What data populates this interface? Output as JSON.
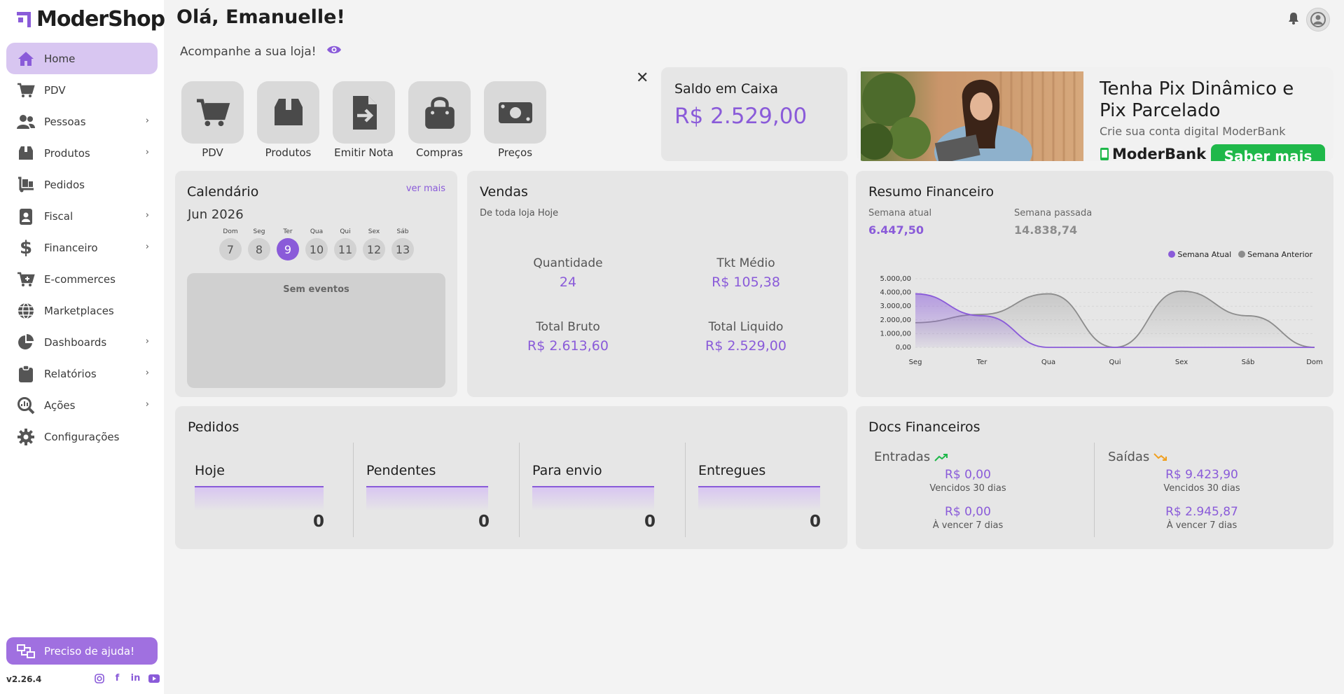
{
  "app": {
    "logo_text": "ModerShop",
    "version": "v2.26.4"
  },
  "sidebar": {
    "items": [
      {
        "label": "Home",
        "icon": "home-icon",
        "chevron": false
      },
      {
        "label": "PDV",
        "icon": "cart-icon",
        "chevron": false
      },
      {
        "label": "Pessoas",
        "icon": "people-icon",
        "chevron": true
      },
      {
        "label": "Produtos",
        "icon": "box-icon",
        "chevron": true
      },
      {
        "label": "Pedidos",
        "icon": "dolly-icon",
        "chevron": false
      },
      {
        "label": "Fiscal",
        "icon": "id-card-icon",
        "chevron": true
      },
      {
        "label": "Financeiro",
        "icon": "dollar-icon",
        "chevron": true
      },
      {
        "label": "E-commerces",
        "icon": "cart-plus-icon",
        "chevron": false
      },
      {
        "label": "Marketplaces",
        "icon": "globe-icon",
        "chevron": false
      },
      {
        "label": "Dashboards",
        "icon": "pie-chart-icon",
        "chevron": true
      },
      {
        "label": "Relatórios",
        "icon": "clipboard-icon",
        "chevron": true
      },
      {
        "label": "Ações",
        "icon": "search-chart-icon",
        "chevron": true
      },
      {
        "label": "Configurações",
        "icon": "gear-icon",
        "chevron": false
      }
    ],
    "help_label": "Preciso de ajuda!"
  },
  "header": {
    "greeting": "Olá, Emanuelle!",
    "subtitle": "Acompanhe a sua loja!"
  },
  "quick_actions": [
    {
      "label": "PDV",
      "icon": "cart-icon"
    },
    {
      "label": "Produtos",
      "icon": "box-icon"
    },
    {
      "label": "Emitir Nota",
      "icon": "file-import-icon"
    },
    {
      "label": "Compras",
      "icon": "shopping-bag-icon"
    },
    {
      "label": "Preços",
      "icon": "money-bill-icon"
    }
  ],
  "saldo": {
    "title": "Saldo em Caixa",
    "value": "R$ 2.529,00"
  },
  "banner": {
    "headline": "Tenha Pix Dinâmico e Pix Parcelado",
    "subtitle": "Crie sua conta digital ModerBank",
    "brand": "ModerBank",
    "cta": "Saber mais"
  },
  "calendar": {
    "title": "Calendário",
    "more": "ver mais",
    "month": "Jun 2026",
    "days": [
      {
        "dow": "Dom",
        "num": "7"
      },
      {
        "dow": "Seg",
        "num": "8"
      },
      {
        "dow": "Ter",
        "num": "9"
      },
      {
        "dow": "Qua",
        "num": "10"
      },
      {
        "dow": "Qui",
        "num": "11"
      },
      {
        "dow": "Sex",
        "num": "12"
      },
      {
        "dow": "Sáb",
        "num": "13"
      }
    ],
    "selected_index": 2,
    "empty": "Sem eventos"
  },
  "vendas": {
    "title": "Vendas",
    "subtitle": "De toda loja Hoje",
    "quantidade_label": "Quantidade",
    "quantidade": "24",
    "tkt_label": "Tkt Médio",
    "tkt": "R$ 105,38",
    "bruto_label": "Total Bruto",
    "bruto": "R$ 2.613,60",
    "liquido_label": "Total Liquido",
    "liquido": "R$ 2.529,00"
  },
  "resumo": {
    "title": "Resumo Financeiro",
    "atual_label": "Semana atual",
    "atual": "6.447,50",
    "passada_label": "Semana passada",
    "passada": "14.838,74"
  },
  "chart_data": {
    "type": "area",
    "categories": [
      "Seg",
      "Ter",
      "Qua",
      "Qui",
      "Sex",
      "Sáb",
      "Dom"
    ],
    "series": [
      {
        "name": "Semana Atual",
        "color": "#8a5bd9",
        "values": [
          3900,
          2300,
          0,
          0,
          0,
          0,
          0
        ]
      },
      {
        "name": "Semana Anterior",
        "color": "#8c8c8c",
        "values": [
          1800,
          2400,
          3900,
          0,
          4100,
          2300,
          0
        ]
      }
    ],
    "y_ticks": [
      "0,00",
      "1.000,00",
      "2.000,00",
      "3.000,00",
      "4.000,00",
      "5.000,00"
    ],
    "ylim": [
      0,
      5000
    ],
    "legend_position": "top-right"
  },
  "pedidos": {
    "title": "Pedidos",
    "cols": [
      {
        "label": "Hoje",
        "value": "0"
      },
      {
        "label": "Pendentes",
        "value": "0"
      },
      {
        "label": "Para envio",
        "value": "0"
      },
      {
        "label": "Entregues",
        "value": "0"
      }
    ]
  },
  "docs": {
    "title": "Docs Financeiros",
    "entradas_label": "Entradas",
    "saidas_label": "Saídas",
    "entradas": [
      {
        "value": "R$ 0,00",
        "label": "Vencidos 30 dias"
      },
      {
        "value": "R$ 0,00",
        "label": "À vencer 7 dias"
      }
    ],
    "saidas": [
      {
        "value": "R$ 9.423,90",
        "label": "Vencidos 30 dias"
      },
      {
        "value": "R$ 2.945,87",
        "label": "À vencer 7 dias"
      }
    ]
  },
  "colors": {
    "accent": "#8a5bd9",
    "accent_light": "#d8c6f1",
    "green": "#1fb84a",
    "card": "#e6e6e6"
  }
}
